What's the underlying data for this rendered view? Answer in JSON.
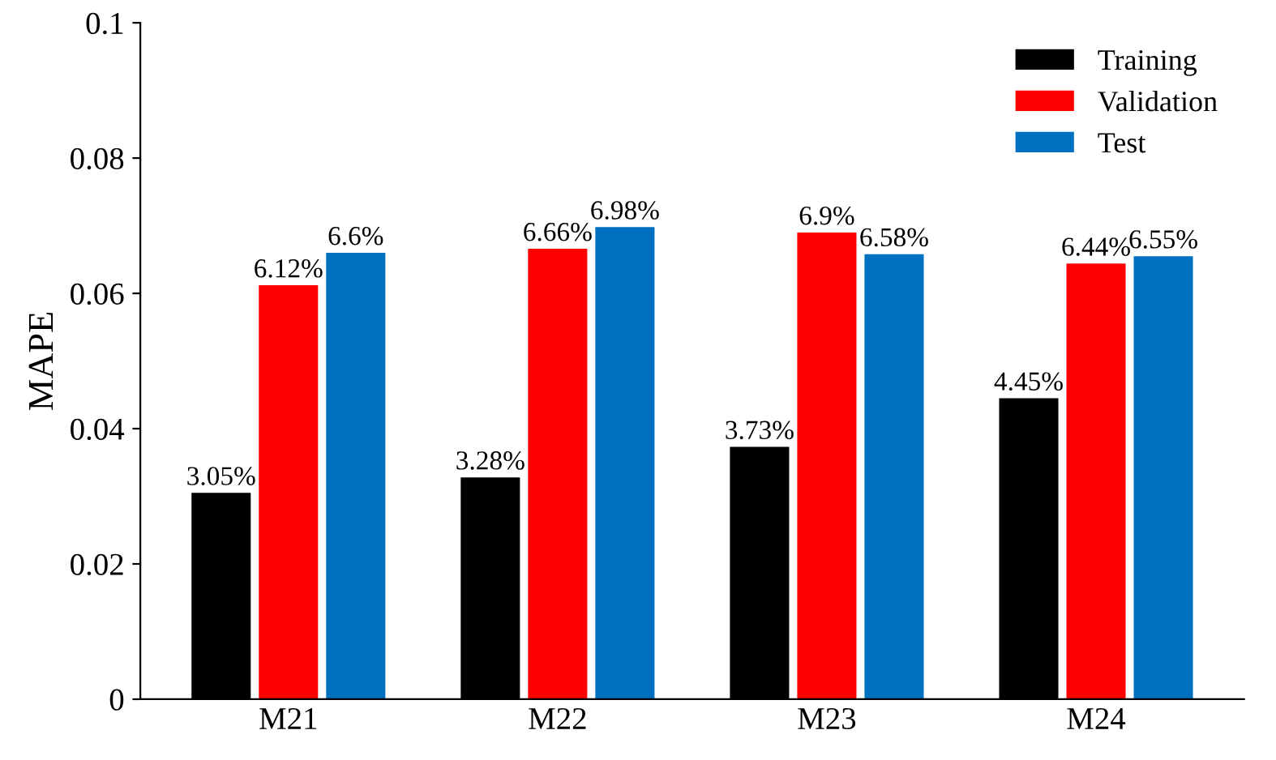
{
  "chart_data": {
    "type": "bar",
    "ylabel": "MAPE",
    "categories": [
      "M21",
      "M22",
      "M23",
      "M24"
    ],
    "series": [
      {
        "name": "Training",
        "color": "#000000",
        "values": [
          0.0305,
          0.0328,
          0.0373,
          0.0445
        ],
        "value_labels": [
          "3.05%",
          "3.28%",
          "3.73%",
          "4.45%"
        ]
      },
      {
        "name": "Validation",
        "color": "#ff0000",
        "values": [
          0.0612,
          0.0666,
          0.069,
          0.0644
        ],
        "value_labels": [
          "6.12%",
          "6.66%",
          "6.9%",
          "6.44%"
        ]
      },
      {
        "name": "Test",
        "color": "#0070c0",
        "values": [
          0.066,
          0.0698,
          0.0658,
          0.0655
        ],
        "value_labels": [
          "6.6%",
          "6.98%",
          "6.58%",
          "6.55%"
        ]
      }
    ],
    "ylim": [
      0,
      0.1
    ],
    "yticks": [
      0,
      0.02,
      0.04,
      0.06,
      0.08,
      0.1
    ],
    "grid": false,
    "legend": "top right"
  }
}
